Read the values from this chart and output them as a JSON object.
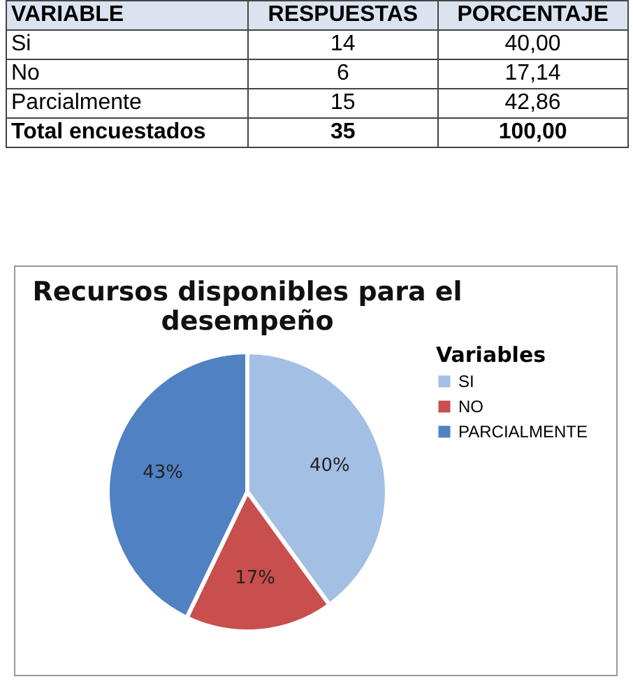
{
  "chart_data": {
    "type": "pie",
    "title": "Recursos disponibles  para el desempeño",
    "categories": [
      "SI",
      "NO",
      "PARCIALMENTE"
    ],
    "values": [
      40,
      17.14,
      42.86
    ],
    "value_labels": [
      "40%",
      "17%",
      "43%"
    ],
    "colors": [
      "#a3bfe3",
      "#c84f4d",
      "#4f81c3"
    ],
    "legend_title": "Variables",
    "legend": "right",
    "annotations": [
      "VARIABLE",
      "RESPUESTAS",
      "PORCENTAJE",
      "Si",
      "14",
      "40,00",
      "No",
      "6",
      "17,14",
      "Parcialmente",
      "15",
      "42,86",
      "Total encuestados",
      "35",
      "100,00"
    ]
  }
}
